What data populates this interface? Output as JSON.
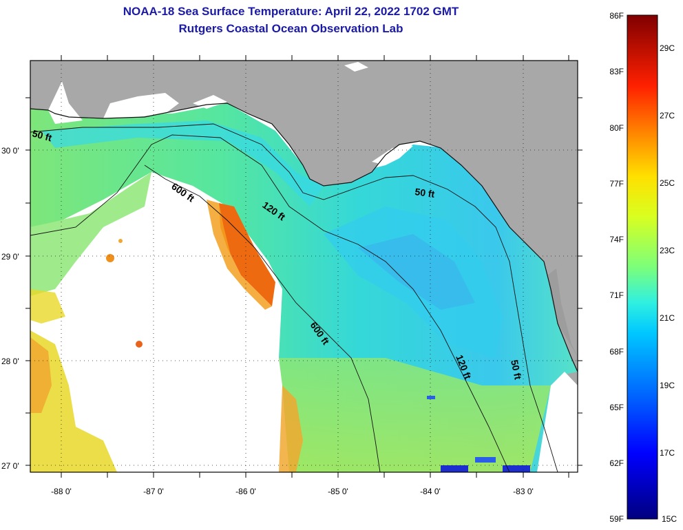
{
  "header": {
    "title_line1": "NOAA-18 Sea Surface Temperature:  April 22, 2022 1702 GMT",
    "title_line2": "Rutgers Coastal Ocean Observation Lab"
  },
  "map": {
    "lon_labels": [
      "-88 0'",
      "-87 0'",
      "-86 0'",
      "-85 0'",
      "-84 0'",
      "-83 0'"
    ],
    "lat_labels": [
      "30 0'",
      "29 0'",
      "28 0'",
      "27 0'"
    ],
    "contour_labels": [
      "50 ft",
      "600 ft",
      "120 ft",
      "50 ft",
      "600 ft",
      "120 ft",
      "50 ft"
    ]
  },
  "colorbar": {
    "f_labels": [
      "86F",
      "83F",
      "80F",
      "77F",
      "74F",
      "71F",
      "68F",
      "65F",
      "62F",
      "59F"
    ],
    "c_labels": [
      "29C",
      "27C",
      "25C",
      "23C",
      "21C",
      "19C",
      "17C",
      "15C"
    ]
  },
  "colors": {
    "title": "#1a1aa6",
    "land": "#a8a8a8",
    "sea_cyan": "#2ee3e8",
    "sea_green": "#9ee86a",
    "warm_orange": "#ee6a10"
  }
}
